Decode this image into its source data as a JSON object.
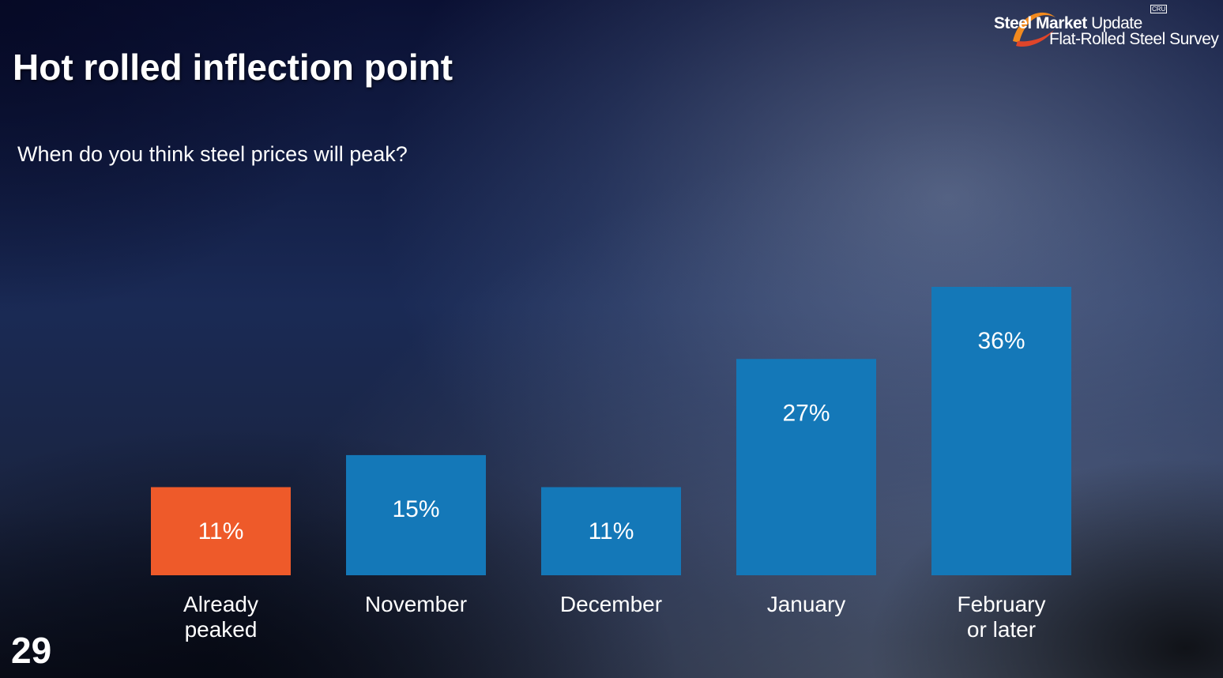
{
  "slide": {
    "title": "Hot rolled inflection point",
    "question": "When do you think steel prices will peak?",
    "page_number": "29"
  },
  "logo": {
    "brand_bold": "Steel Market",
    "brand_light": "Update",
    "tagline": "Flat-Rolled Steel Survey",
    "badge": "CRU"
  },
  "colors": {
    "highlight": "#ee5a2a",
    "bar": "#1478b8",
    "text": "#ffffff"
  },
  "chart_data": {
    "type": "bar",
    "title": "",
    "xlabel": "",
    "ylabel": "",
    "categories": [
      [
        "Already",
        "peaked"
      ],
      [
        "November"
      ],
      [
        "December"
      ],
      [
        "January"
      ],
      [
        "February",
        "or later"
      ]
    ],
    "values": [
      11,
      15,
      11,
      27,
      36
    ],
    "value_labels": [
      "11%",
      "15%",
      "11%",
      "27%",
      "36%"
    ],
    "highlight_index": 0,
    "ylim": [
      0,
      36
    ],
    "grid": false,
    "legend": "none"
  }
}
